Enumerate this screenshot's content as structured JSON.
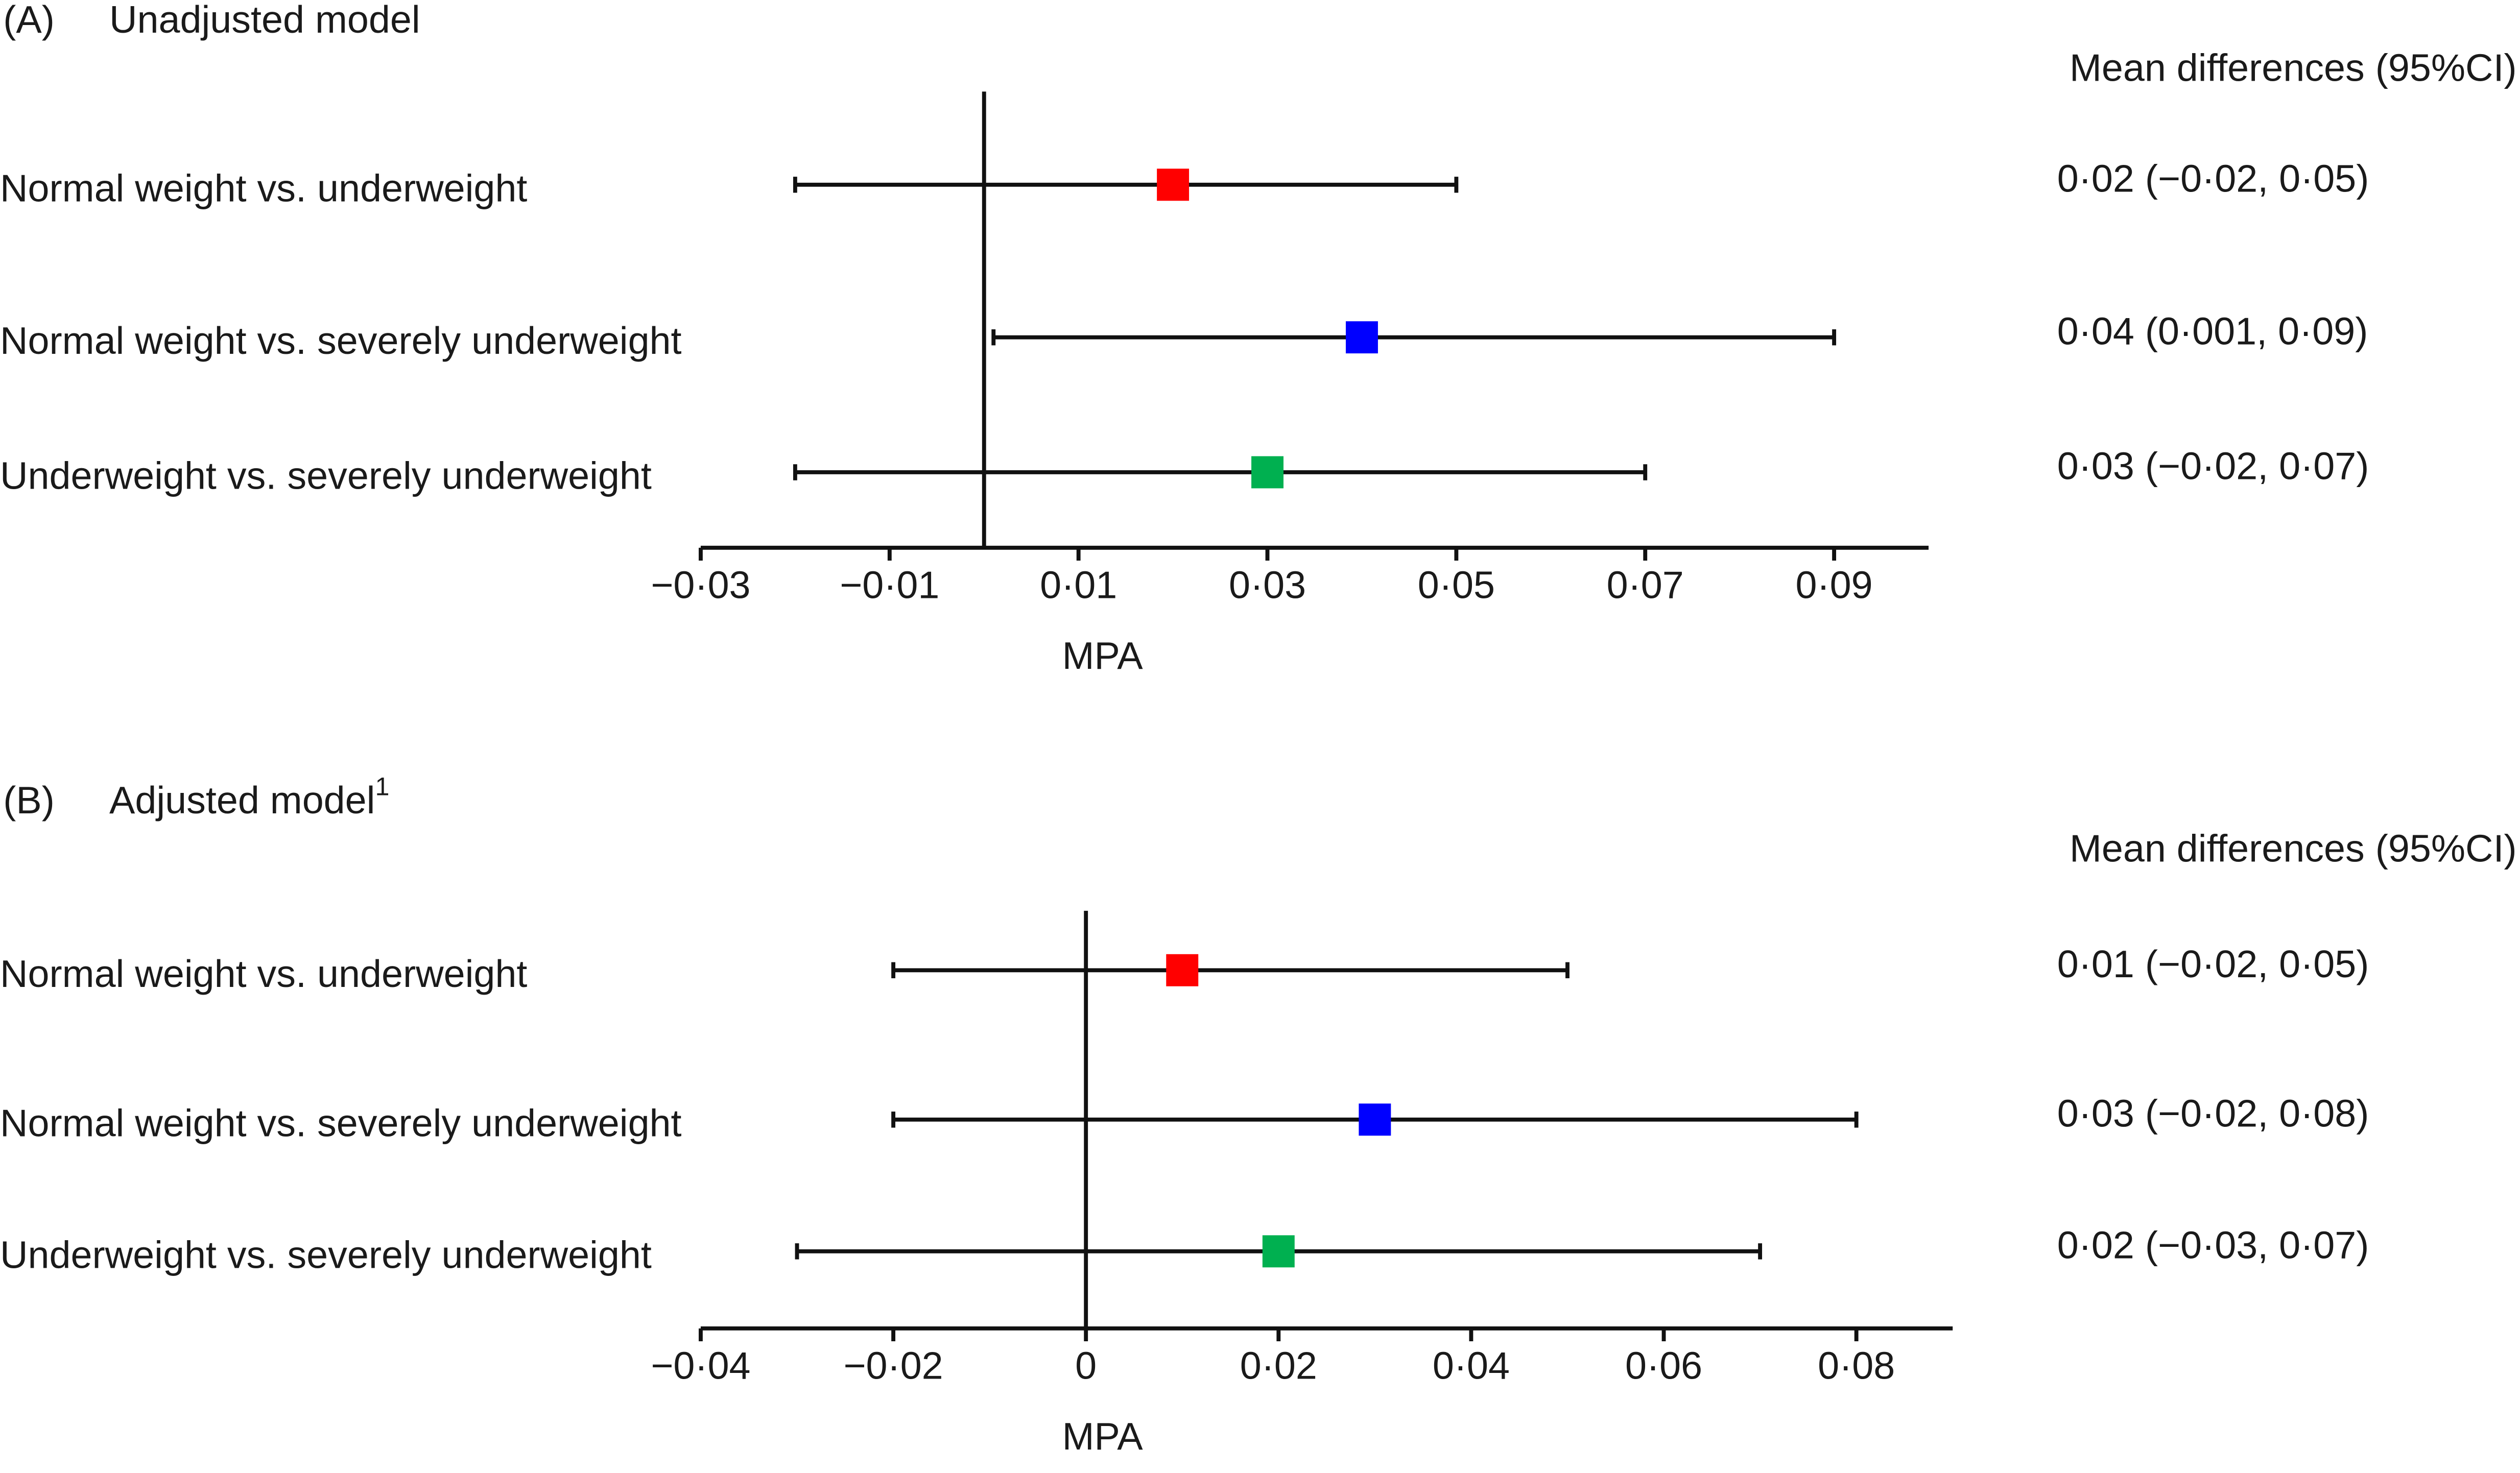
{
  "chart_data": [
    {
      "type": "forest",
      "panel": "(A)",
      "title": "Unadjusted model",
      "column_header": "Mean differences (95%CI)",
      "categories": [
        "Normal weight vs. underweight",
        "Normal weight vs. severely underweight",
        "Underweight vs. severely underweight"
      ],
      "values": [
        0.02,
        0.04,
        0.03
      ],
      "lower": [
        -0.02,
        0.001,
        -0.02
      ],
      "upper": [
        0.05,
        0.09,
        0.07
      ],
      "colors": [
        "#ff0000",
        "#0000ff",
        "#00b050"
      ],
      "value_labels": [
        "0·02 (−0·02, 0·05)",
        "0·04 (0·001, 0·09)",
        "0·03 (−0·02, 0·07)"
      ],
      "xlabel": "MPA",
      "xlim": [
        -0.03,
        0.1
      ],
      "xticks": [
        {
          "value": -0.03,
          "label": "−0·03"
        },
        {
          "value": -0.01,
          "label": "−0·01"
        },
        {
          "value": 0.01,
          "label": "0·01"
        },
        {
          "value": 0.03,
          "label": "0·03"
        },
        {
          "value": 0.05,
          "label": "0·05"
        },
        {
          "value": 0.07,
          "label": "0·07"
        },
        {
          "value": 0.09,
          "label": "0·09"
        }
      ]
    },
    {
      "type": "forest",
      "panel": "(B)",
      "title": "Adjusted model",
      "title_superscript": "1",
      "column_header": "Mean differences (95%CI)",
      "categories": [
        "Normal weight vs. underweight",
        "Normal weight vs. severely underweight",
        "Underweight vs. severely underweight"
      ],
      "values": [
        0.01,
        0.03,
        0.02
      ],
      "lower": [
        -0.02,
        -0.02,
        -0.03
      ],
      "upper": [
        0.05,
        0.08,
        0.07
      ],
      "colors": [
        "#ff0000",
        "#0000ff",
        "#00b050"
      ],
      "value_labels": [
        "0·01 (−0·02, 0·05)",
        "0·03 (−0·02, 0·08)",
        "0·02 (−0·03, 0·07)"
      ],
      "xlabel": "MPA",
      "xlim": [
        -0.04,
        0.09
      ],
      "xticks": [
        {
          "value": -0.04,
          "label": "−0·04"
        },
        {
          "value": -0.02,
          "label": "−0·02"
        },
        {
          "value": 0,
          "label": "0"
        },
        {
          "value": 0.02,
          "label": "0·02"
        },
        {
          "value": 0.04,
          "label": "0·04"
        },
        {
          "value": 0.06,
          "label": "0·06"
        },
        {
          "value": 0.08,
          "label": "0·08"
        }
      ]
    }
  ]
}
